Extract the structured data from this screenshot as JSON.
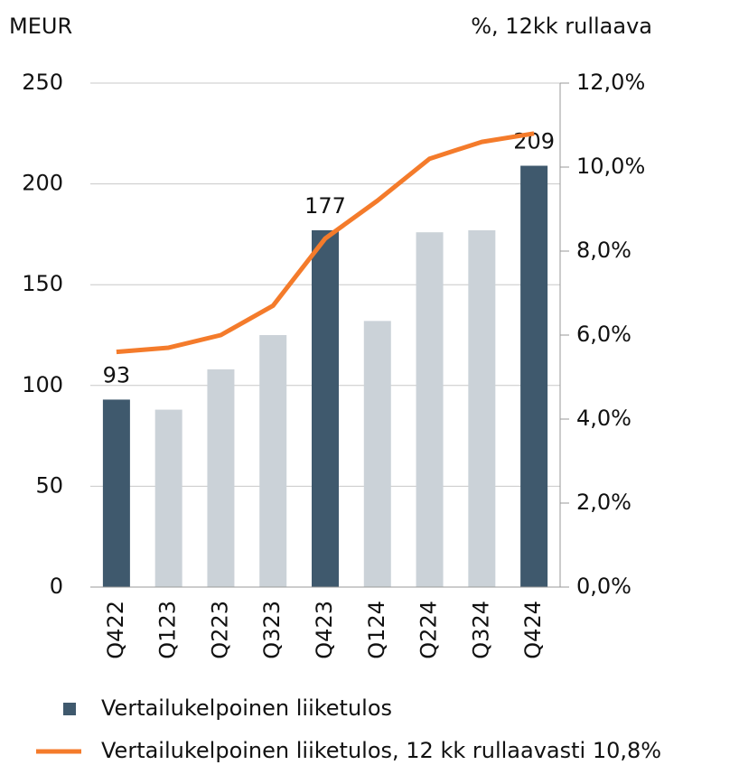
{
  "chart_data": {
    "type": "bar",
    "ylabel": "MEUR",
    "y2label": "%, 12kk rullaava",
    "categories": [
      "Q422",
      "Q123",
      "Q223",
      "Q323",
      "Q423",
      "Q124",
      "Q224",
      "Q324",
      "Q424"
    ],
    "series": [
      {
        "name": "Vertailukelpoinen liiketulos",
        "type": "bar",
        "color": "#3f596d",
        "colors": [
          "#3f596d",
          "#cbd2d8",
          "#cbd2d8",
          "#cbd2d8",
          "#3f596d",
          "#cbd2d8",
          "#cbd2d8",
          "#cbd2d8",
          "#3f596d"
        ],
        "values": [
          93,
          88,
          108,
          125,
          177,
          132,
          176,
          177,
          209
        ],
        "value_labels": [
          "93",
          null,
          null,
          null,
          "177",
          null,
          null,
          null,
          "209"
        ]
      },
      {
        "name": "Vertailukelpoinen liiketulos, 12 kk rullaavasti 10,8%",
        "type": "line",
        "axis": "y2",
        "color": "#f47b2b",
        "values": [
          5.6,
          5.7,
          6.0,
          6.7,
          8.3,
          9.2,
          10.2,
          10.6,
          10.8
        ]
      }
    ],
    "ylim": [
      0,
      250
    ],
    "yticks": [
      0,
      50,
      100,
      150,
      200,
      250
    ],
    "y2lim": [
      0,
      12
    ],
    "y2ticks": [
      {
        "value": 0,
        "label": "0,0%"
      },
      {
        "value": 2,
        "label": "2,0%"
      },
      {
        "value": 4,
        "label": "4,0%"
      },
      {
        "value": 6,
        "label": "6,0%"
      },
      {
        "value": 8,
        "label": "8,0%"
      },
      {
        "value": 10,
        "label": "10,0%"
      },
      {
        "value": 12,
        "label": "12,0%"
      }
    ],
    "grid": true
  }
}
